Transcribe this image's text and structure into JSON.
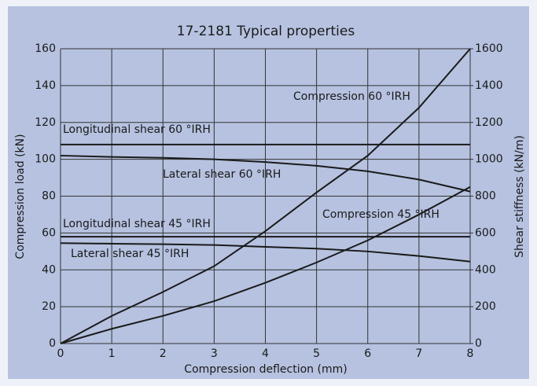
{
  "chart_data": {
    "type": "line",
    "title": "17-2181 Typical properties",
    "xlabel": "Compression deflection (mm)",
    "ylabel": "Compression load (kN)",
    "y2label": "Shear stiffness (kN/m)",
    "x": [
      0,
      1,
      2,
      3,
      4,
      5,
      6,
      7,
      8
    ],
    "series": [
      {
        "name": "Compression 60 °IRH",
        "color": "#1a1a1a",
        "values": [
          0,
          15,
          28,
          42,
          61,
          82,
          102,
          128,
          160
        ]
      },
      {
        "name": "Longitudinal shear 60 °IRH",
        "color": "#1a1a1a",
        "axis": "y2",
        "values": [
          1080,
          1080,
          1080,
          1080,
          1080,
          1080,
          1080,
          1080,
          1080
        ]
      },
      {
        "name": "Lateral shear 60 °IRH",
        "color": "#1a1a1a",
        "axis": "y2",
        "values": [
          1020,
          1013,
          1008,
          1000,
          985,
          965,
          935,
          890,
          825
        ]
      },
      {
        "name": "Compression 45 °IRH",
        "color": "#1a1a1a",
        "values": [
          0,
          8,
          15,
          23,
          33,
          44,
          56,
          70,
          85
        ]
      },
      {
        "name": "Longitudinal shear 45 °IRH",
        "color": "#1a1a1a",
        "axis": "y2",
        "values": [
          580,
          580,
          580,
          580,
          580,
          580,
          580,
          580,
          580
        ]
      },
      {
        "name": "Lateral shear 45 °IRH",
        "color": "#1a1a1a",
        "axis": "y2",
        "values": [
          545,
          542,
          539,
          535,
          525,
          515,
          500,
          475,
          445
        ]
      }
    ],
    "xlim": [
      0,
      8
    ],
    "xticks": [
      0,
      1,
      2,
      3,
      4,
      5,
      6,
      7,
      8
    ],
    "ylim": [
      0,
      160
    ],
    "yticks": [
      0,
      20,
      40,
      60,
      80,
      100,
      120,
      140,
      160
    ],
    "y2lim": [
      0,
      1600
    ],
    "y2ticks": [
      0,
      200,
      400,
      600,
      800,
      1000,
      1200,
      1400,
      1600
    ],
    "grid": true
  }
}
